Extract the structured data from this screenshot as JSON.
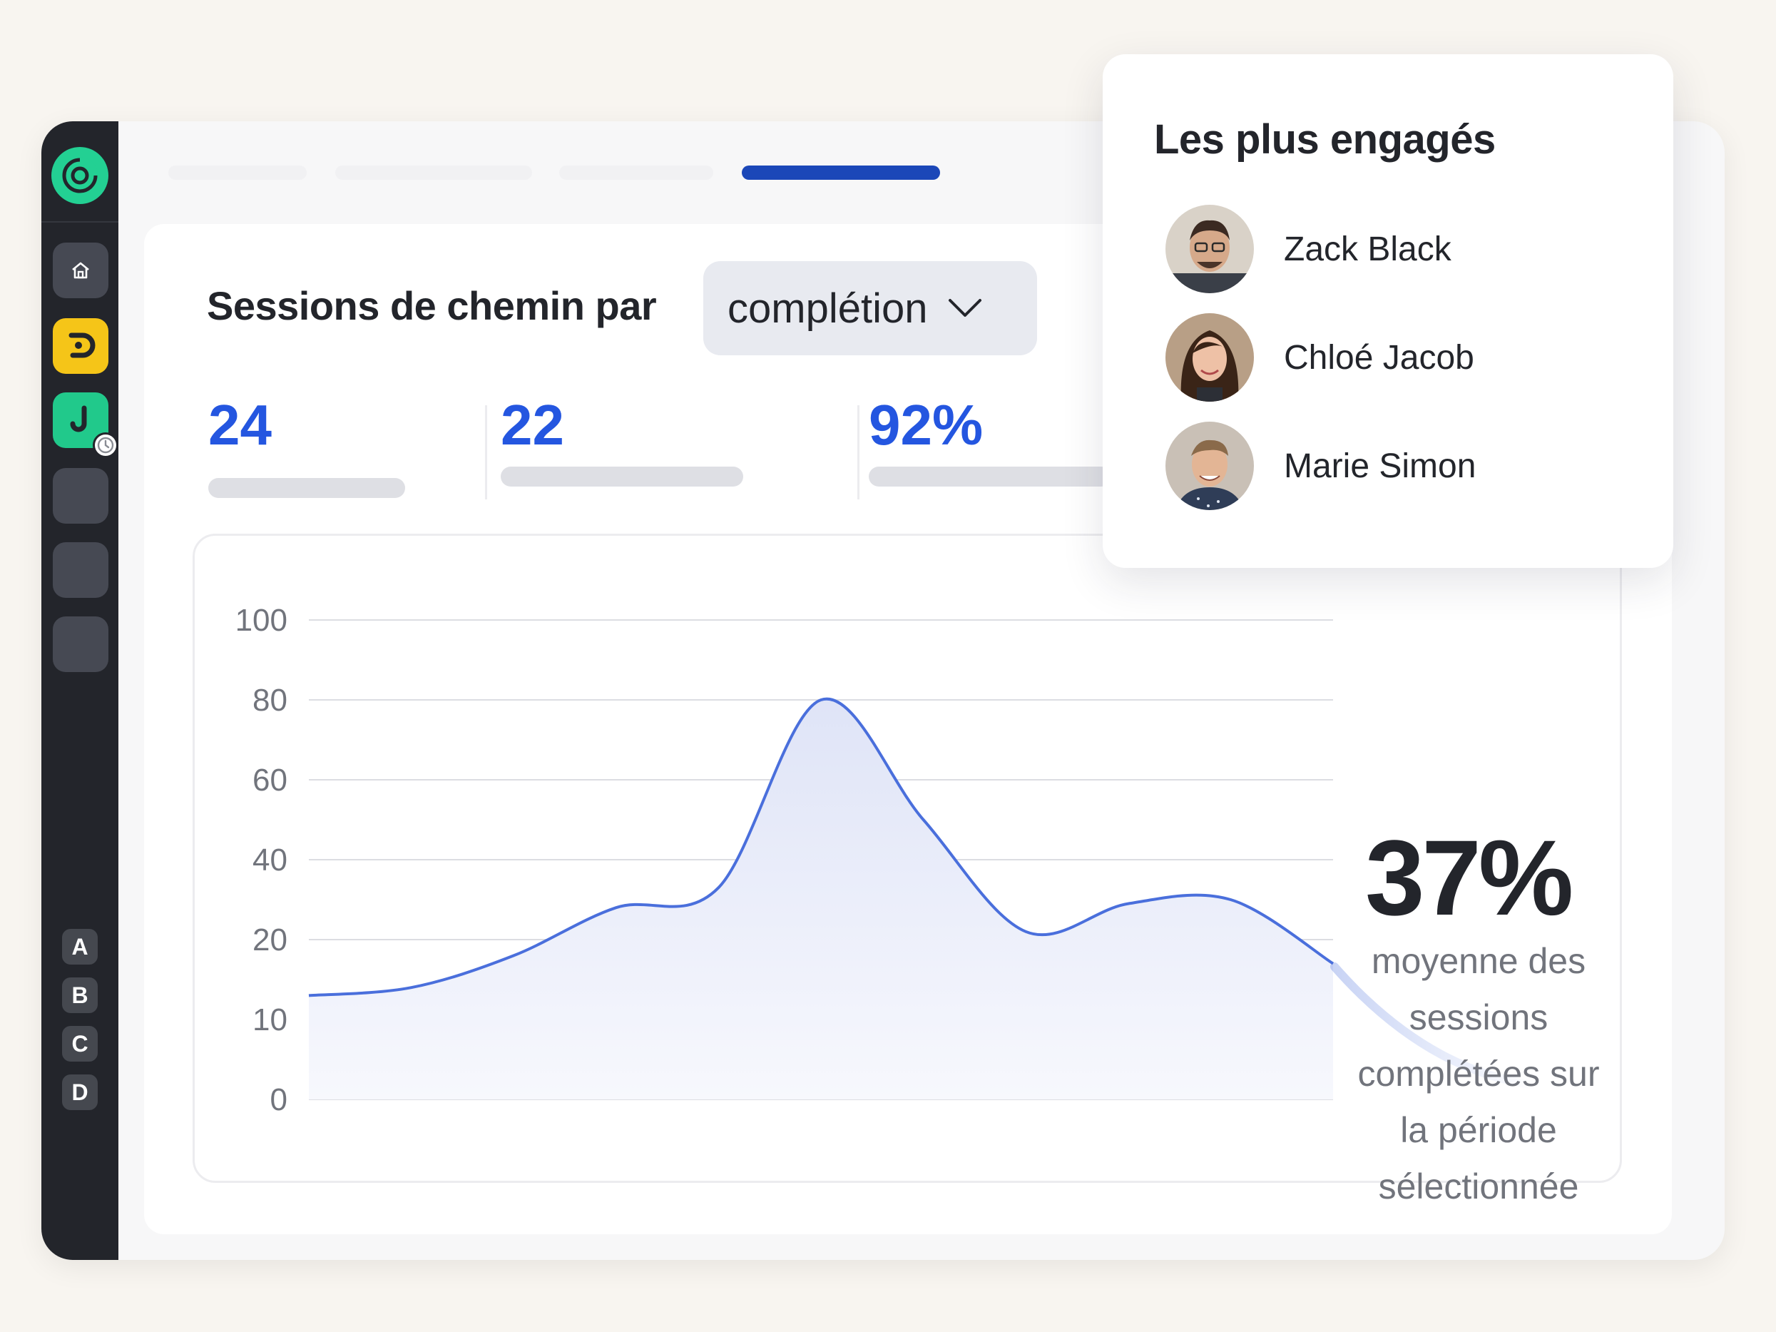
{
  "sidebar": {
    "letters": [
      "A",
      "B",
      "C",
      "D"
    ]
  },
  "card": {
    "title": "Sessions de chemin par",
    "dropdown_value": "complétion"
  },
  "stats": [
    {
      "value": "24"
    },
    {
      "value": "22"
    },
    {
      "value": "92%"
    }
  ],
  "summary": {
    "value": "37%",
    "description_lines": [
      "moyenne des",
      "sessions",
      "complétées sur",
      "la période",
      "sélectionnée"
    ]
  },
  "popup": {
    "title": "Les plus engagés",
    "people": [
      {
        "name": "Zack Black"
      },
      {
        "name": "Chloé Jacob"
      },
      {
        "name": "Marie Simon"
      }
    ]
  },
  "colors": {
    "accent": "#2456e0",
    "line": "#4a6fdc",
    "tab_active": "#1b47b8",
    "sidebar": "#23252b",
    "logo": "#23d093",
    "yellow_app": "#f5c518",
    "green_app": "#21c98b"
  },
  "icons": {
    "home": "home-icon",
    "clock": "clock-icon",
    "chevron": "chevron-down-icon"
  },
  "chart_data": {
    "type": "area",
    "x": [
      0,
      1,
      2,
      3,
      4,
      5,
      6,
      7,
      8,
      9,
      10
    ],
    "y": [
      13,
      14,
      18,
      28,
      33,
      80,
      50,
      22,
      29,
      30,
      17
    ],
    "y_ticks": [
      0,
      10,
      20,
      40,
      60,
      80,
      100
    ],
    "ylim": [
      0,
      100
    ],
    "grid": true
  }
}
